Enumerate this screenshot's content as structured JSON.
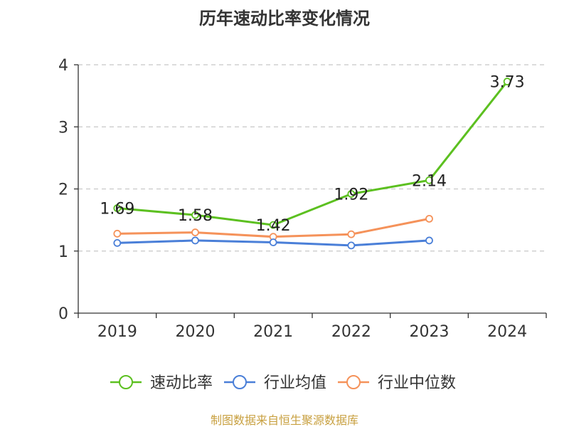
{
  "chart_data": {
    "type": "line",
    "title": "历年速动比率变化情况",
    "categories": [
      "2019",
      "2020",
      "2021",
      "2022",
      "2023",
      "2024"
    ],
    "ylim": [
      0,
      4
    ],
    "yticks": [
      0,
      1,
      2,
      3,
      4
    ],
    "grid": true,
    "legend_position": "bottom",
    "series": [
      {
        "name": "速动比率",
        "color": "#5cc020",
        "values": [
          1.69,
          1.58,
          1.42,
          1.92,
          2.14,
          3.73
        ],
        "labels": [
          "1.69",
          "1.58",
          "1.42",
          "1.92",
          "2.14",
          "3.73"
        ]
      },
      {
        "name": "行业均值",
        "color": "#4a7fd8",
        "values": [
          1.13,
          1.17,
          1.14,
          1.09,
          1.17,
          null
        ]
      },
      {
        "name": "行业中位数",
        "color": "#f5925a",
        "values": [
          1.28,
          1.3,
          1.23,
          1.27,
          1.52,
          null
        ]
      }
    ]
  },
  "source_text": "制图数据来自恒生聚源数据库"
}
